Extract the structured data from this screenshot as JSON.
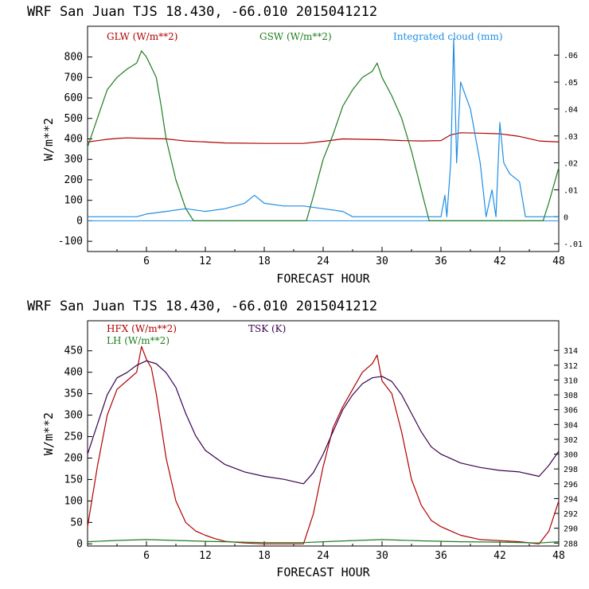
{
  "chart_data": [
    {
      "type": "line",
      "title": "WRF  San Juan TJS  18.430, -66.010  2015041212",
      "xlabel": "FORECAST HOUR",
      "ylabel": "W/m**2",
      "xlim": [
        0,
        48
      ],
      "ylim": [
        -150,
        950
      ],
      "y2lim": [
        -0.0129,
        0.0707
      ],
      "x_ticks": [
        "6",
        "12",
        "18",
        "24",
        "30",
        "36",
        "42",
        "48"
      ],
      "y_ticks": [
        "-100",
        "0",
        "100",
        "200",
        "300",
        "400",
        "500",
        "600",
        "700",
        "800"
      ],
      "y2_ticks": [
        "-.01",
        "0",
        ".01",
        ".02",
        ".03",
        ".04",
        ".05",
        ".06"
      ],
      "legend_placement": "top",
      "colors": {
        "GLW": "#b00000",
        "GSW": "#1e7d1e",
        "CLOUD": "#1e8ee6"
      },
      "series": [
        {
          "name": "GLW (W/m**2)",
          "axis": "left",
          "color": "#b00000",
          "x": [
            0,
            2,
            3,
            4,
            6,
            8,
            9,
            10,
            14,
            18,
            22,
            24,
            26,
            28,
            30,
            32,
            34,
            36,
            37,
            38,
            40,
            42,
            44,
            46,
            48
          ],
          "y": [
            385,
            398,
            402,
            405,
            402,
            400,
            395,
            390,
            380,
            378,
            378,
            388,
            400,
            398,
            396,
            392,
            390,
            392,
            420,
            430,
            428,
            425,
            412,
            390,
            385
          ]
        },
        {
          "name": "GSW (W/m**2)",
          "axis": "left",
          "color": "#1e7d1e",
          "x": [
            0,
            1,
            2,
            3,
            4,
            5,
            5.5,
            6,
            7,
            7.5,
            8,
            9,
            10,
            10.8,
            22.3,
            23,
            24,
            25,
            26,
            27,
            28,
            29,
            29.5,
            30,
            31,
            32,
            33,
            34,
            34.8,
            46.4,
            47,
            48
          ],
          "y": [
            360,
            500,
            640,
            700,
            740,
            770,
            830,
            800,
            700,
            560,
            400,
            200,
            60,
            0,
            0,
            120,
            300,
            420,
            560,
            640,
            700,
            730,
            770,
            700,
            610,
            500,
            340,
            150,
            0,
            0,
            90,
            260
          ]
        },
        {
          "name": "Integrated cloud (mm)",
          "axis": "right",
          "color": "#1e8ee6",
          "x": [
            0,
            5,
            6,
            8,
            10,
            12,
            14,
            15,
            16,
            17,
            18,
            20,
            22,
            24,
            26,
            27,
            36,
            36.4,
            36.6,
            37,
            37.3,
            37.6,
            38,
            38.5,
            39,
            40,
            40.6,
            41.2,
            41.6,
            42,
            42.4,
            43,
            44,
            44.6,
            48
          ],
          "y": [
            0,
            0,
            0.001,
            0.002,
            0.003,
            0.002,
            0.003,
            0.004,
            0.005,
            0.008,
            0.005,
            0.004,
            0.004,
            0.003,
            0.002,
            0,
            0,
            0.008,
            0,
            0.02,
            0.066,
            0.02,
            0.05,
            0.045,
            0.04,
            0.02,
            0,
            0.01,
            0,
            0.035,
            0.02,
            0.016,
            0.013,
            0,
            0
          ]
        }
      ]
    },
    {
      "type": "line",
      "title": "WRF  San Juan TJS  18.430, -66.010  2015041212",
      "xlabel": "FORECAST HOUR",
      "ylabel": "W/m**2",
      "xlim": [
        0,
        48
      ],
      "ylim": [
        -5,
        520
      ],
      "y2lim": [
        287.6,
        318
      ],
      "x_ticks": [
        "6",
        "12",
        "18",
        "24",
        "30",
        "36",
        "42",
        "48"
      ],
      "y_ticks": [
        "0",
        "50",
        "100",
        "150",
        "200",
        "250",
        "300",
        "350",
        "400",
        "450"
      ],
      "y2_ticks": [
        "288",
        "290",
        "292",
        "294",
        "296",
        "298",
        "300",
        "302",
        "304",
        "306",
        "308",
        "310",
        "312",
        "314"
      ],
      "legend_placement": "top-left",
      "colors": {
        "HFX": "#b00000",
        "LH": "#1e7d1e",
        "TSK": "#3a0050"
      },
      "series": [
        {
          "name": "HFX (W/m**2)",
          "axis": "left",
          "color": "#b00000",
          "x": [
            0,
            1,
            2,
            3,
            4,
            5,
            5.5,
            6,
            6.5,
            7,
            8,
            9,
            10,
            11,
            12,
            13,
            14,
            16,
            18,
            20,
            22,
            23,
            24,
            25,
            26,
            27,
            28,
            29,
            29.5,
            30,
            31,
            32,
            33,
            34,
            35,
            36,
            37,
            38,
            40,
            44,
            46,
            47,
            48
          ],
          "y": [
            40,
            180,
            300,
            360,
            380,
            400,
            460,
            430,
            410,
            350,
            200,
            100,
            50,
            30,
            20,
            12,
            6,
            2,
            0,
            0,
            0,
            70,
            180,
            270,
            320,
            360,
            400,
            420,
            440,
            380,
            350,
            260,
            150,
            90,
            55,
            40,
            30,
            20,
            10,
            5,
            0,
            30,
            100
          ]
        },
        {
          "name": "LH  (W/m**2)",
          "axis": "left",
          "color": "#1e7d1e",
          "x": [
            0,
            3,
            6,
            9,
            12,
            18,
            22,
            25,
            30,
            34,
            38,
            42,
            46,
            48
          ],
          "y": [
            5,
            8,
            10,
            8,
            6,
            3,
            3,
            6,
            10,
            7,
            5,
            4,
            2,
            5
          ]
        },
        {
          "name": "TSK (K)",
          "axis": "right",
          "color": "#3a0050",
          "x": [
            0,
            1,
            2,
            3,
            4,
            5,
            6,
            7,
            8,
            9,
            10,
            11,
            12,
            14,
            16,
            18,
            20,
            22,
            23,
            24,
            25,
            26,
            27,
            28,
            29,
            30,
            31,
            32,
            33,
            34,
            35,
            36,
            38,
            40,
            42,
            44,
            46,
            47,
            48
          ],
          "y": [
            300,
            304,
            308,
            310.3,
            311,
            312,
            312.6,
            312.2,
            311,
            309,
            305.5,
            302.5,
            300.5,
            298.6,
            297.6,
            297,
            296.6,
            296,
            297.5,
            300,
            303,
            306,
            308,
            309.5,
            310.3,
            310.5,
            309.8,
            308,
            305.5,
            303,
            301,
            300,
            298.8,
            298.2,
            297.8,
            297.6,
            297,
            298.5,
            300.4
          ]
        }
      ]
    }
  ]
}
